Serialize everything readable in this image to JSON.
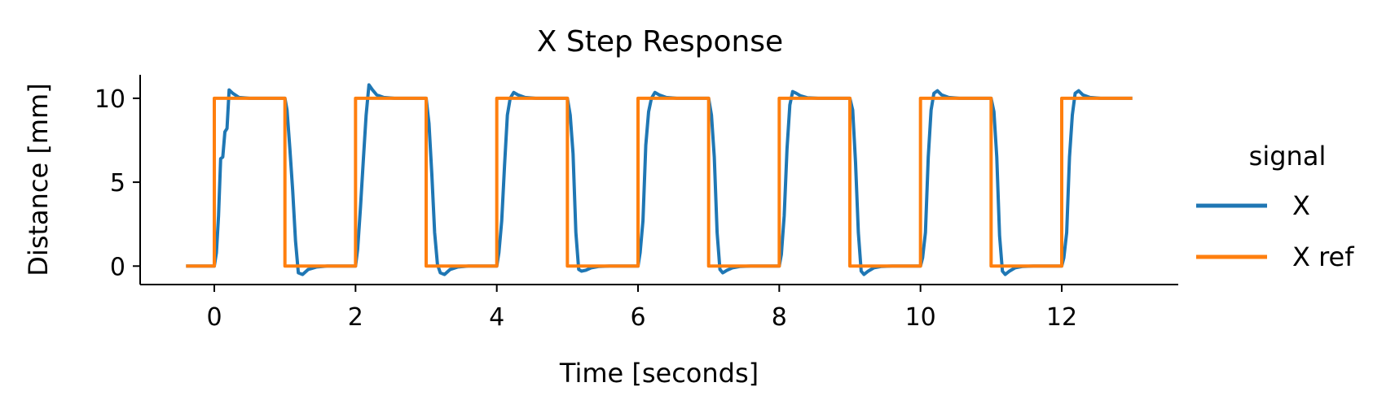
{
  "chart_data": {
    "type": "line",
    "title": "X Step Response",
    "xlabel": "Time [seconds]",
    "ylabel": "Distance [mm]",
    "xlim": [
      -1.05,
      13.65
    ],
    "ylim": [
      -1.1,
      11.4
    ],
    "xticks": [
      0,
      2,
      4,
      6,
      8,
      10,
      12
    ],
    "yticks": [
      0,
      5,
      10
    ],
    "grid": false,
    "legend": {
      "title": "signal",
      "position": "right"
    },
    "series": [
      {
        "name": "X",
        "color": "#1f77b4",
        "x": [
          -0.4,
          0.0,
          0.03,
          0.06,
          0.09,
          0.12,
          0.15,
          0.18,
          0.21,
          0.26,
          0.35,
          0.5,
          1.0,
          1.03,
          1.07,
          1.11,
          1.15,
          1.19,
          1.25,
          1.33,
          1.45,
          1.6,
          2.0,
          2.03,
          2.07,
          2.11,
          2.15,
          2.19,
          2.24,
          2.3,
          2.4,
          2.55,
          3.0,
          3.04,
          3.08,
          3.12,
          3.16,
          3.2,
          3.26,
          3.34,
          3.45,
          3.6,
          4.0,
          4.03,
          4.07,
          4.11,
          4.15,
          4.19,
          4.24,
          4.3,
          4.4,
          4.55,
          5.0,
          5.04,
          5.08,
          5.12,
          5.16,
          5.2,
          5.26,
          5.34,
          5.45,
          5.6,
          6.0,
          6.03,
          6.07,
          6.11,
          6.15,
          6.19,
          6.24,
          6.3,
          6.4,
          6.55,
          7.0,
          7.04,
          7.08,
          7.12,
          7.16,
          7.2,
          7.26,
          7.34,
          7.45,
          7.6,
          8.0,
          8.03,
          8.07,
          8.11,
          8.15,
          8.19,
          8.24,
          8.3,
          8.4,
          8.55,
          9.0,
          9.04,
          9.08,
          9.12,
          9.16,
          9.2,
          9.26,
          9.34,
          9.45,
          9.6,
          10.0,
          10.03,
          10.07,
          10.11,
          10.15,
          10.19,
          10.24,
          10.3,
          10.4,
          10.55,
          11.0,
          11.04,
          11.08,
          11.12,
          11.16,
          11.2,
          11.26,
          11.34,
          11.45,
          11.6,
          12.0,
          12.03,
          12.07,
          12.11,
          12.15,
          12.19,
          12.24,
          12.3,
          12.4,
          12.55,
          13.0
        ],
        "y": [
          0.0,
          0.0,
          0.8,
          3.0,
          6.4,
          6.5,
          8.0,
          8.2,
          10.5,
          10.3,
          10.05,
          10.0,
          10.0,
          9.3,
          7.0,
          4.5,
          1.5,
          -0.4,
          -0.5,
          -0.2,
          -0.05,
          0.0,
          0.0,
          1.0,
          3.5,
          6.3,
          9.0,
          10.8,
          10.5,
          10.2,
          10.05,
          10.0,
          10.0,
          8.5,
          5.5,
          2.0,
          0.1,
          -0.4,
          -0.5,
          -0.2,
          -0.05,
          0.0,
          0.0,
          0.8,
          2.7,
          6.0,
          9.0,
          10.0,
          10.35,
          10.2,
          10.05,
          10.0,
          10.0,
          9.0,
          6.7,
          2.0,
          -0.2,
          -0.3,
          -0.25,
          -0.1,
          -0.02,
          0.0,
          0.0,
          0.8,
          2.7,
          7.2,
          9.2,
          10.0,
          10.35,
          10.2,
          10.05,
          10.0,
          10.0,
          9.0,
          6.5,
          2.0,
          -0.2,
          -0.4,
          -0.25,
          -0.1,
          -0.02,
          0.0,
          0.0,
          0.7,
          3.0,
          7.0,
          9.6,
          10.4,
          10.3,
          10.15,
          10.03,
          10.0,
          10.0,
          9.3,
          6.2,
          2.0,
          -0.3,
          -0.5,
          -0.3,
          -0.1,
          -0.02,
          0.0,
          0.0,
          0.5,
          2.0,
          6.5,
          9.3,
          10.3,
          10.45,
          10.2,
          10.05,
          10.0,
          10.0,
          9.2,
          6.5,
          1.8,
          -0.3,
          -0.5,
          -0.3,
          -0.1,
          -0.02,
          0.0,
          0.0,
          0.5,
          2.0,
          6.5,
          9.0,
          10.3,
          10.45,
          10.2,
          10.05,
          10.0,
          10.0
        ]
      },
      {
        "name": "X ref",
        "color": "#ff7f0e",
        "x": [
          -0.4,
          0.0,
          0.0,
          1.0,
          1.0,
          2.0,
          2.0,
          3.0,
          3.0,
          4.0,
          4.0,
          5.0,
          5.0,
          6.0,
          6.0,
          7.0,
          7.0,
          8.0,
          8.0,
          9.0,
          9.0,
          10.0,
          10.0,
          11.0,
          11.0,
          12.0,
          12.0,
          13.0
        ],
        "y": [
          0,
          0,
          10,
          10,
          0,
          0,
          10,
          10,
          0,
          0,
          10,
          10,
          0,
          0,
          10,
          10,
          0,
          0,
          10,
          10,
          0,
          0,
          10,
          10,
          0,
          0,
          10,
          10
        ]
      }
    ]
  }
}
